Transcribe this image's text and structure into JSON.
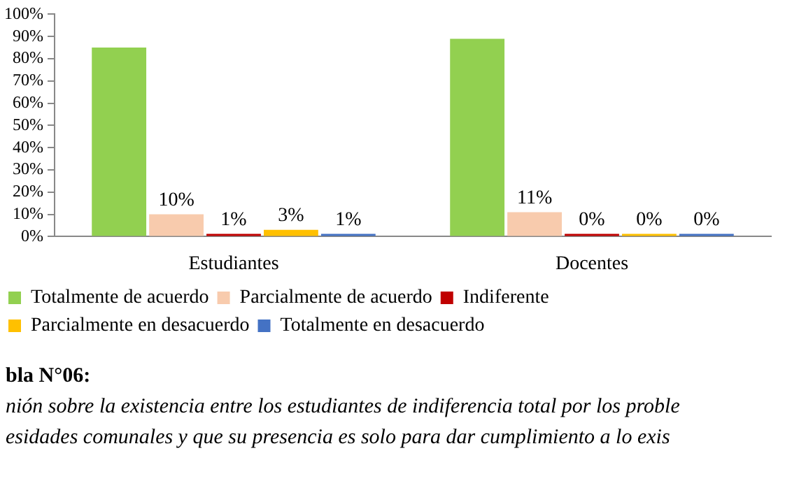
{
  "chart_data": {
    "type": "bar",
    "categories": [
      "Estudiantes",
      "Docentes"
    ],
    "series": [
      {
        "name": "Totalmente de acuerdo",
        "color": "#92d050",
        "values": [
          85,
          89
        ],
        "value_labels": [
          null,
          null
        ]
      },
      {
        "name": "Parcialmente de acuerdo",
        "color": "#f8cbad",
        "values": [
          10,
          11
        ],
        "value_labels": [
          "10%",
          "11%"
        ]
      },
      {
        "name": "Indiferente",
        "color": "#c00000",
        "values": [
          1,
          0
        ],
        "value_labels": [
          "1%",
          "0%"
        ]
      },
      {
        "name": "Parcialmente en desacuerdo",
        "color": "#ffc000",
        "values": [
          3,
          0
        ],
        "value_labels": [
          "3%",
          "0%"
        ]
      },
      {
        "name": "Totalmente en desacuerdo",
        "color": "#4472c4",
        "values": [
          1,
          0
        ],
        "value_labels": [
          "1%",
          "0%"
        ]
      }
    ],
    "ylim": [
      0,
      100
    ],
    "yticks": [
      {
        "value": 0,
        "label": "0%"
      },
      {
        "value": 10,
        "label": "10%"
      },
      {
        "value": 20,
        "label": "20%"
      },
      {
        "value": 30,
        "label": "30%"
      },
      {
        "value": 40,
        "label": "40%"
      },
      {
        "value": 50,
        "label": "50%"
      },
      {
        "value": 60,
        "label": "60%"
      },
      {
        "value": 70,
        "label": "70%"
      },
      {
        "value": 80,
        "label": "80%"
      },
      {
        "value": 90,
        "label": "90%"
      },
      {
        "value": 100,
        "label": "100%"
      }
    ],
    "grid": false,
    "legend": "bottom",
    "annotations": [
      "bla N°06:",
      "nión sobre la existencia entre los estudiantes de indiferencia total por los proble",
      "esidades comunales y que su presencia es solo para dar cumplimiento a lo exis"
    ]
  }
}
